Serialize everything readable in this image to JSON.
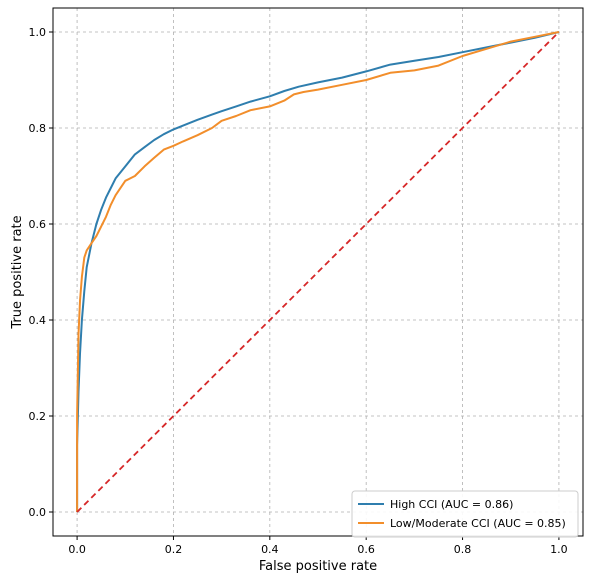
{
  "chart_data": {
    "type": "line",
    "title": "",
    "xlabel": "False positive rate",
    "ylabel": "True positive rate",
    "xlim": [
      -0.05,
      1.05
    ],
    "ylim": [
      -0.05,
      1.05
    ],
    "xticks": [
      0.0,
      0.2,
      0.4,
      0.6,
      0.8,
      1.0
    ],
    "yticks": [
      0.0,
      0.2,
      0.4,
      0.6,
      0.8,
      1.0
    ],
    "xtick_labels": [
      "0.0",
      "0.2",
      "0.4",
      "0.6",
      "0.8",
      "1.0"
    ],
    "ytick_labels": [
      "0.0",
      "0.2",
      "0.4",
      "0.6",
      "0.8",
      "1.0"
    ],
    "grid": true,
    "legend_position": "lower-right",
    "series": [
      {
        "name": "High CCI (AUC = 0.86)",
        "color": "#2f7eae",
        "style": "solid",
        "x": [
          0,
          0,
          0.003,
          0.006,
          0.01,
          0.015,
          0.02,
          0.03,
          0.04,
          0.05,
          0.06,
          0.07,
          0.08,
          0.1,
          0.12,
          0.14,
          0.16,
          0.18,
          0.2,
          0.22,
          0.25,
          0.28,
          0.3,
          0.33,
          0.36,
          0.4,
          0.43,
          0.46,
          0.5,
          0.55,
          0.6,
          0.65,
          0.7,
          0.75,
          0.8,
          0.85,
          0.9,
          0.95,
          1.0
        ],
        "y": [
          0,
          0.14,
          0.25,
          0.33,
          0.4,
          0.46,
          0.51,
          0.56,
          0.6,
          0.63,
          0.655,
          0.675,
          0.695,
          0.72,
          0.745,
          0.76,
          0.775,
          0.787,
          0.797,
          0.805,
          0.817,
          0.828,
          0.835,
          0.845,
          0.855,
          0.866,
          0.877,
          0.886,
          0.895,
          0.905,
          0.918,
          0.932,
          0.94,
          0.948,
          0.958,
          0.968,
          0.978,
          0.988,
          1.0
        ]
      },
      {
        "name": "Low/Moderate CCI (AUC = 0.85)",
        "color": "#f28e2b",
        "style": "solid",
        "x": [
          0,
          0,
          0.003,
          0.006,
          0.01,
          0.015,
          0.02,
          0.03,
          0.04,
          0.05,
          0.06,
          0.07,
          0.08,
          0.1,
          0.12,
          0.14,
          0.16,
          0.18,
          0.2,
          0.22,
          0.25,
          0.28,
          0.3,
          0.33,
          0.36,
          0.4,
          0.43,
          0.45,
          0.47,
          0.5,
          0.55,
          0.6,
          0.65,
          0.7,
          0.75,
          0.8,
          0.85,
          0.9,
          0.95,
          1.0
        ],
        "y": [
          0,
          0.2,
          0.37,
          0.44,
          0.49,
          0.53,
          0.545,
          0.56,
          0.575,
          0.595,
          0.615,
          0.64,
          0.66,
          0.69,
          0.7,
          0.72,
          0.738,
          0.755,
          0.763,
          0.772,
          0.785,
          0.8,
          0.815,
          0.825,
          0.837,
          0.845,
          0.857,
          0.87,
          0.875,
          0.88,
          0.89,
          0.9,
          0.915,
          0.92,
          0.93,
          0.95,
          0.965,
          0.98,
          0.99,
          1.0
        ]
      },
      {
        "name": "",
        "color": "#d62728",
        "style": "dashed",
        "x": [
          0,
          1
        ],
        "y": [
          0,
          1
        ]
      }
    ]
  }
}
